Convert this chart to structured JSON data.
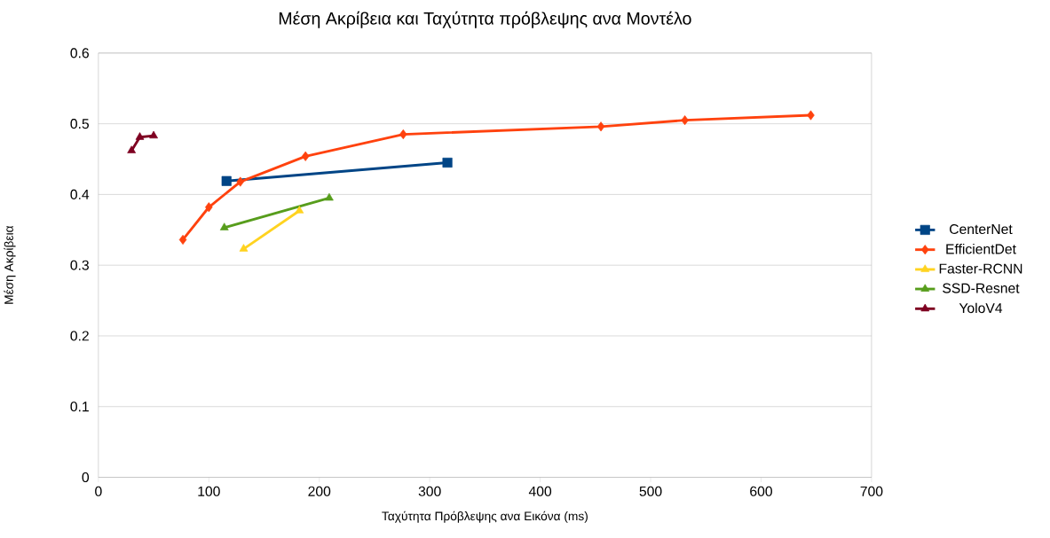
{
  "chart_data": {
    "type": "line",
    "title": "Μέση Ακρίβεια και Ταχύτητα πρόβλεψης ανα Μοντέλο",
    "xlabel": "Ταχύτητα Πρόβλεψης ανα Εικόνα (ms)",
    "ylabel": "Μέση Ακρίβεια",
    "xlim": [
      0,
      700
    ],
    "ylim": [
      0,
      0.6
    ],
    "xticks": [
      0,
      100,
      200,
      300,
      400,
      500,
      600,
      700
    ],
    "yticks": [
      0,
      0.1,
      0.2,
      0.3,
      0.4,
      0.5,
      0.6
    ],
    "grid": "y",
    "legend": "right",
    "series": [
      {
        "name": "CenterNet",
        "color": "#004586",
        "marker": "square",
        "x": [
          116,
          316
        ],
        "values": [
          0.419,
          0.445
        ]
      },
      {
        "name": "EfficientDet",
        "color": "#ff420e",
        "marker": "diamond",
        "x": [
          76.5,
          100,
          128.5,
          187.5,
          276,
          455,
          531,
          645
        ],
        "values": [
          0.336,
          0.382,
          0.418,
          0.454,
          0.485,
          0.496,
          0.505,
          0.512
        ]
      },
      {
        "name": "Faster-RCNN",
        "color": "#ffd320",
        "marker": "triangle",
        "x": [
          131.5,
          182
        ],
        "values": [
          0.323,
          0.377
        ]
      },
      {
        "name": "SSD-Resnet",
        "color": "#579d1c",
        "marker": "triangle",
        "x": [
          114,
          209
        ],
        "values": [
          0.353,
          0.395
        ]
      },
      {
        "name": "YoloV4",
        "color": "#7e0021",
        "marker": "triangle",
        "x": [
          30,
          37.5,
          50
        ],
        "values": [
          0.462,
          0.481,
          0.483
        ]
      }
    ]
  }
}
